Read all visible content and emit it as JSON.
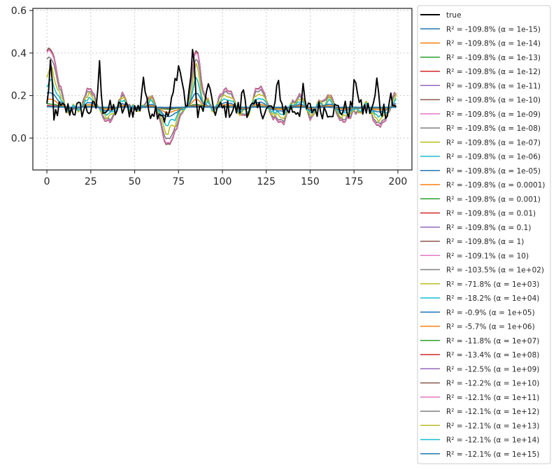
{
  "chart_data": {
    "type": "line",
    "title": "",
    "xlabel": "",
    "ylabel": "",
    "xlim": [
      -8,
      208
    ],
    "ylim": [
      -0.15,
      0.61
    ],
    "xticks": [
      0,
      25,
      50,
      75,
      100,
      125,
      150,
      175,
      200
    ],
    "yticks": [
      0.0,
      0.2,
      0.4,
      0.6
    ],
    "xtick_labels": [
      "0",
      "25",
      "50",
      "75",
      "100",
      "125",
      "150",
      "175",
      "200"
    ],
    "ytick_labels": [
      "0.0",
      "0.2",
      "0.4",
      "0.6"
    ],
    "grid": true,
    "legend_placement": "outside-right",
    "n_points": 200,
    "series": [
      {
        "name": "true",
        "color": "#000000"
      },
      {
        "name": "R² = -109.8%  (α = 1e-15)",
        "alpha": "1e-15",
        "r2": -109.8,
        "color": "#1f77b4"
      },
      {
        "name": "R² = -109.8%  (α = 1e-14)",
        "alpha": "1e-14",
        "r2": -109.8,
        "color": "#ff7f0e"
      },
      {
        "name": "R² = -109.8%  (α = 1e-13)",
        "alpha": "1e-13",
        "r2": -109.8,
        "color": "#2ca02c"
      },
      {
        "name": "R² = -109.8%  (α = 1e-12)",
        "alpha": "1e-12",
        "r2": -109.8,
        "color": "#d62728"
      },
      {
        "name": "R² = -109.8%  (α = 1e-11)",
        "alpha": "1e-11",
        "r2": -109.8,
        "color": "#9467bd"
      },
      {
        "name": "R² = -109.8%  (α = 1e-10)",
        "alpha": "1e-10",
        "r2": -109.8,
        "color": "#8c564b"
      },
      {
        "name": "R² = -109.8%  (α = 1e-09)",
        "alpha": "1e-09",
        "r2": -109.8,
        "color": "#e377c2"
      },
      {
        "name": "R² = -109.8%  (α = 1e-08)",
        "alpha": "1e-08",
        "r2": -109.8,
        "color": "#7f7f7f"
      },
      {
        "name": "R² = -109.8%  (α = 1e-07)",
        "alpha": "1e-07",
        "r2": -109.8,
        "color": "#bcbd22"
      },
      {
        "name": "R² = -109.8%  (α = 1e-06)",
        "alpha": "1e-06",
        "r2": -109.8,
        "color": "#17becf"
      },
      {
        "name": "R² = -109.8%  (α = 1e-05)",
        "alpha": "1e-05",
        "r2": -109.8,
        "color": "#1f77b4"
      },
      {
        "name": "R² = -109.8%  (α = 0.0001)",
        "alpha": "0.0001",
        "r2": -109.8,
        "color": "#ff7f0e"
      },
      {
        "name": "R² = -109.8%  (α = 0.001)",
        "alpha": "0.001",
        "r2": -109.8,
        "color": "#2ca02c"
      },
      {
        "name": "R² = -109.8%  (α = 0.01)",
        "alpha": "0.01",
        "r2": -109.8,
        "color": "#d62728"
      },
      {
        "name": "R² = -109.8%  (α = 0.1)",
        "alpha": "0.1",
        "r2": -109.8,
        "color": "#9467bd"
      },
      {
        "name": "R² = -109.8%  (α = 1)",
        "alpha": "1",
        "r2": -109.8,
        "color": "#8c564b"
      },
      {
        "name": "R² = -109.1%  (α = 10)",
        "alpha": "10",
        "r2": -109.1,
        "color": "#e377c2"
      },
      {
        "name": "R² = -103.5%  (α = 1e+02)",
        "alpha": "1e+02",
        "r2": -103.5,
        "color": "#7f7f7f"
      },
      {
        "name": "R² = -71.8%  (α = 1e+03)",
        "alpha": "1e+03",
        "r2": -71.8,
        "color": "#bcbd22"
      },
      {
        "name": "R² = -18.2%  (α = 1e+04)",
        "alpha": "1e+04",
        "r2": -18.2,
        "color": "#17becf"
      },
      {
        "name": "R² = -0.9%  (α = 1e+05)",
        "alpha": "1e+05",
        "r2": -0.9,
        "color": "#1f77b4"
      },
      {
        "name": "R² = -5.7%  (α = 1e+06)",
        "alpha": "1e+06",
        "r2": -5.7,
        "color": "#ff7f0e"
      },
      {
        "name": "R² = -11.8%  (α = 1e+07)",
        "alpha": "1e+07",
        "r2": -11.8,
        "color": "#2ca02c"
      },
      {
        "name": "R² = -13.4%  (α = 1e+08)",
        "alpha": "1e+08",
        "r2": -13.4,
        "color": "#d62728"
      },
      {
        "name": "R² = -12.5%  (α = 1e+09)",
        "alpha": "1e+09",
        "r2": -12.5,
        "color": "#9467bd"
      },
      {
        "name": "R² = -12.2%  (α = 1e+10)",
        "alpha": "1e+10",
        "r2": -12.2,
        "color": "#8c564b"
      },
      {
        "name": "R² = -12.1%  (α = 1e+11)",
        "alpha": "1e+11",
        "r2": -12.1,
        "color": "#e377c2"
      },
      {
        "name": "R² = -12.1%  (α = 1e+12)",
        "alpha": "1e+12",
        "r2": -12.1,
        "color": "#7f7f7f"
      },
      {
        "name": "R² = -12.1%  (α = 1e+13)",
        "alpha": "1e+13",
        "r2": -12.1,
        "color": "#bcbd22"
      },
      {
        "name": "R² = -12.1%  (α = 1e+14)",
        "alpha": "1e+14",
        "r2": -12.1,
        "color": "#17becf"
      },
      {
        "name": "R² = -12.1%  (α = 1e+15)",
        "alpha": "1e+15",
        "r2": -12.1,
        "color": "#1f77b4"
      }
    ]
  }
}
